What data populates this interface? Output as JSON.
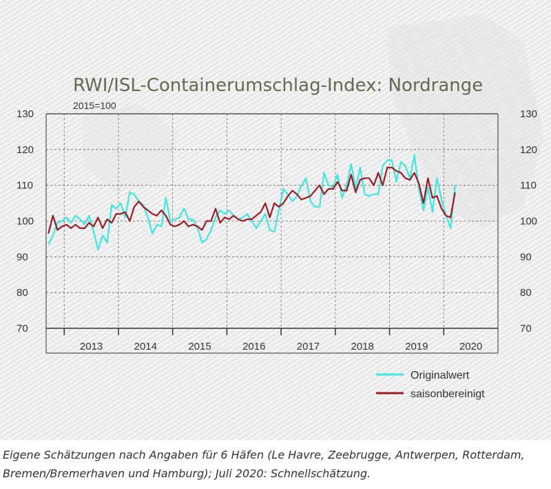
{
  "chart_data": {
    "type": "line",
    "title": "RWI/ISL-Containerumschlag-Index: Nordrange",
    "subtitle": "2015=100",
    "ylim": [
      70,
      130
    ],
    "y_ticks": [
      "70",
      "80",
      "90",
      "100",
      "110",
      "120",
      "130"
    ],
    "x_start": "2012-09",
    "x_end": "2020-12",
    "years": [
      "2013",
      "2014",
      "2015",
      "2016",
      "2017",
      "2018",
      "2019",
      "2020"
    ],
    "grid": true,
    "legend_position": "bottom-right",
    "series": [
      {
        "name": "Originalwert",
        "color": "#3ce8e0",
        "values": [
          93.5,
          96,
          99.5,
          100,
          101,
          99.5,
          101.5,
          100.5,
          99,
          101.5,
          97,
          92,
          96,
          94,
          104.5,
          103.5,
          105,
          101,
          108,
          107.5,
          105.5,
          104.5,
          101,
          96.5,
          99,
          98.5,
          106.5,
          100,
          100.5,
          101,
          103.5,
          100.5,
          100.5,
          98,
          94,
          95,
          97.5,
          101,
          103,
          102,
          103,
          101.5,
          100.5,
          101,
          102,
          100,
          98,
          100,
          102,
          97.5,
          97,
          103,
          109,
          107.5,
          105.5,
          107,
          110,
          112,
          105.5,
          104,
          104,
          113.5,
          110,
          109.5,
          113,
          106.5,
          110,
          116,
          109,
          115,
          107.5,
          107,
          107.5,
          107.5,
          115.5,
          117,
          117,
          111,
          116.5,
          115.5,
          112,
          118.5,
          109,
          103,
          109.5,
          102.5,
          112,
          106,
          101.5,
          98,
          110
        ]
      },
      {
        "name": "saisonbereinigt",
        "color": "#9b1b24",
        "values": [
          96.5,
          101.5,
          97.5,
          98.5,
          99,
          98,
          99,
          98,
          98,
          99.5,
          98.5,
          101,
          98,
          100.5,
          99.5,
          102,
          102,
          102.5,
          100,
          104,
          105.5,
          104,
          103,
          102,
          101.5,
          103,
          101.5,
          99,
          98.5,
          99,
          100,
          98.5,
          99,
          98.5,
          97.5,
          100,
          100,
          103.5,
          99.5,
          101,
          100.5,
          101.5,
          100.5,
          100,
          100.5,
          100.5,
          101.5,
          102.5,
          105,
          101,
          105,
          104,
          105,
          107,
          108.5,
          107.5,
          106,
          106.5,
          107,
          108.5,
          110,
          107.5,
          109,
          109,
          111,
          108.5,
          108.5,
          113,
          108,
          111.5,
          112,
          112,
          110,
          113.5,
          110,
          115,
          115,
          114,
          113.5,
          112,
          111.5,
          113.5,
          110.5,
          105,
          112,
          106.5,
          107,
          103.5,
          101.5,
          101,
          108
        ]
      }
    ]
  },
  "footnote": {
    "line1": "Eigene Schätzungen nach Angaben für 6 Häfen (Le Havre, Zeebrugge, Antwerpen, Rotterdam,",
    "line2": "Bremen/Bremerhaven und Hamburg); Juli 2020: Schnellschätzung."
  }
}
